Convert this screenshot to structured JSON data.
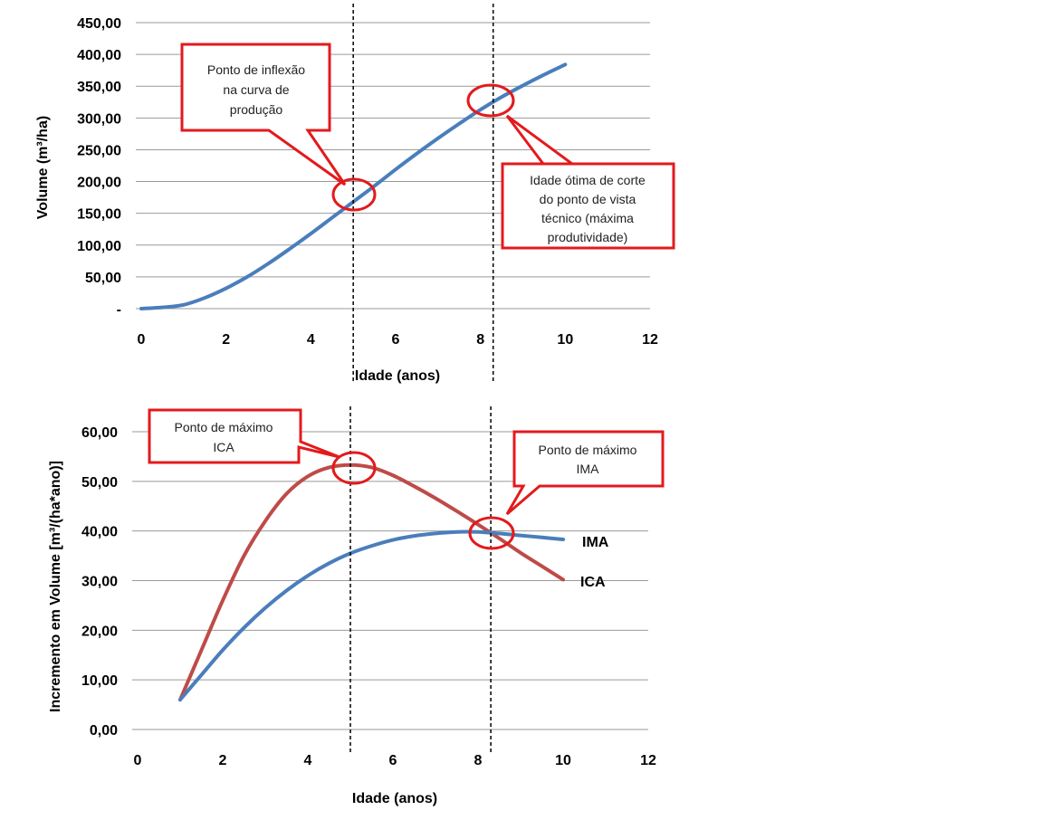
{
  "colors": {
    "volume_line": "#4a7ebb",
    "ima_line": "#4a7ebb",
    "ica_line": "#be4b48",
    "grid": "#9a9a9a",
    "callout": "#e31a1c",
    "guide": "#000000"
  },
  "chart_data": [
    {
      "type": "line",
      "xlabel": "Idade (anos)",
      "ylabel": "Volume (m³/ha)",
      "xlim": [
        0,
        12
      ],
      "ylim": [
        0,
        450
      ],
      "x_ticks": [
        "0",
        "2",
        "4",
        "6",
        "8",
        "10",
        "12"
      ],
      "y_ticks": [
        "-",
        "50,00",
        "100,00",
        "150,00",
        "200,00",
        "250,00",
        "300,00",
        "350,00",
        "400,00",
        "450,00"
      ],
      "grid": true,
      "guide_lines_x": [
        5,
        8.3
      ],
      "series": [
        {
          "x": [
            0,
            0.5,
            1,
            1.5,
            2,
            2.5,
            3,
            3.5,
            4,
            4.5,
            5,
            5.5,
            6,
            6.5,
            7,
            7.5,
            8,
            8.5,
            9,
            9.5,
            10
          ],
          "values": [
            0,
            2,
            6,
            17,
            32,
            50,
            71,
            94,
            118,
            143,
            168,
            193,
            219,
            244,
            268,
            291,
            313,
            333,
            351,
            368,
            384
          ]
        }
      ],
      "annotations": [
        {
          "lines": [
            "Ponto de inflexão",
            "na curva de",
            "produção"
          ]
        },
        {
          "lines": [
            "Idade ótima de corte",
            "do ponto de vista",
            "técnico (máxima",
            "produtividade)"
          ]
        }
      ]
    },
    {
      "type": "line",
      "xlabel": "Idade (anos)",
      "ylabel": "Incremento em Volume [m³/(ha*ano)]",
      "xlim": [
        0,
        12
      ],
      "ylim": [
        0,
        60
      ],
      "x_ticks": [
        "0",
        "2",
        "4",
        "6",
        "8",
        "10",
        "12"
      ],
      "y_ticks": [
        "0,00",
        "10,00",
        "20,00",
        "30,00",
        "40,00",
        "50,00",
        "60,00"
      ],
      "grid": true,
      "guide_lines_x": [
        5,
        8.3
      ],
      "series": [
        {
          "name": "IMA",
          "x": [
            1,
            1.5,
            2,
            2.5,
            3,
            3.5,
            4,
            4.5,
            5,
            5.5,
            6,
            6.5,
            7,
            7.5,
            8,
            8.5,
            9,
            9.5,
            10
          ],
          "values": [
            6,
            11,
            16,
            20.5,
            24.5,
            28,
            31,
            33.5,
            35.5,
            37,
            38.2,
            39,
            39.5,
            39.8,
            39.8,
            39.5,
            39.1,
            38.7,
            38.3
          ]
        },
        {
          "name": "ICA",
          "x": [
            1,
            1.5,
            2,
            2.5,
            3,
            3.5,
            4,
            4.5,
            5,
            5.5,
            6,
            6.5,
            7,
            7.5,
            8,
            8.5,
            9,
            9.5,
            10
          ],
          "values": [
            6,
            16,
            26,
            35,
            42,
            47.5,
            51,
            52.8,
            53.3,
            52.8,
            51.2,
            49,
            46.6,
            44,
            41.3,
            38.5,
            35.6,
            32.9,
            30.2
          ]
        }
      ],
      "annotations": [
        {
          "lines": [
            "Ponto de máximo",
            "ICA"
          ]
        },
        {
          "lines": [
            "Ponto de máximo",
            "IMA"
          ]
        }
      ]
    }
  ]
}
